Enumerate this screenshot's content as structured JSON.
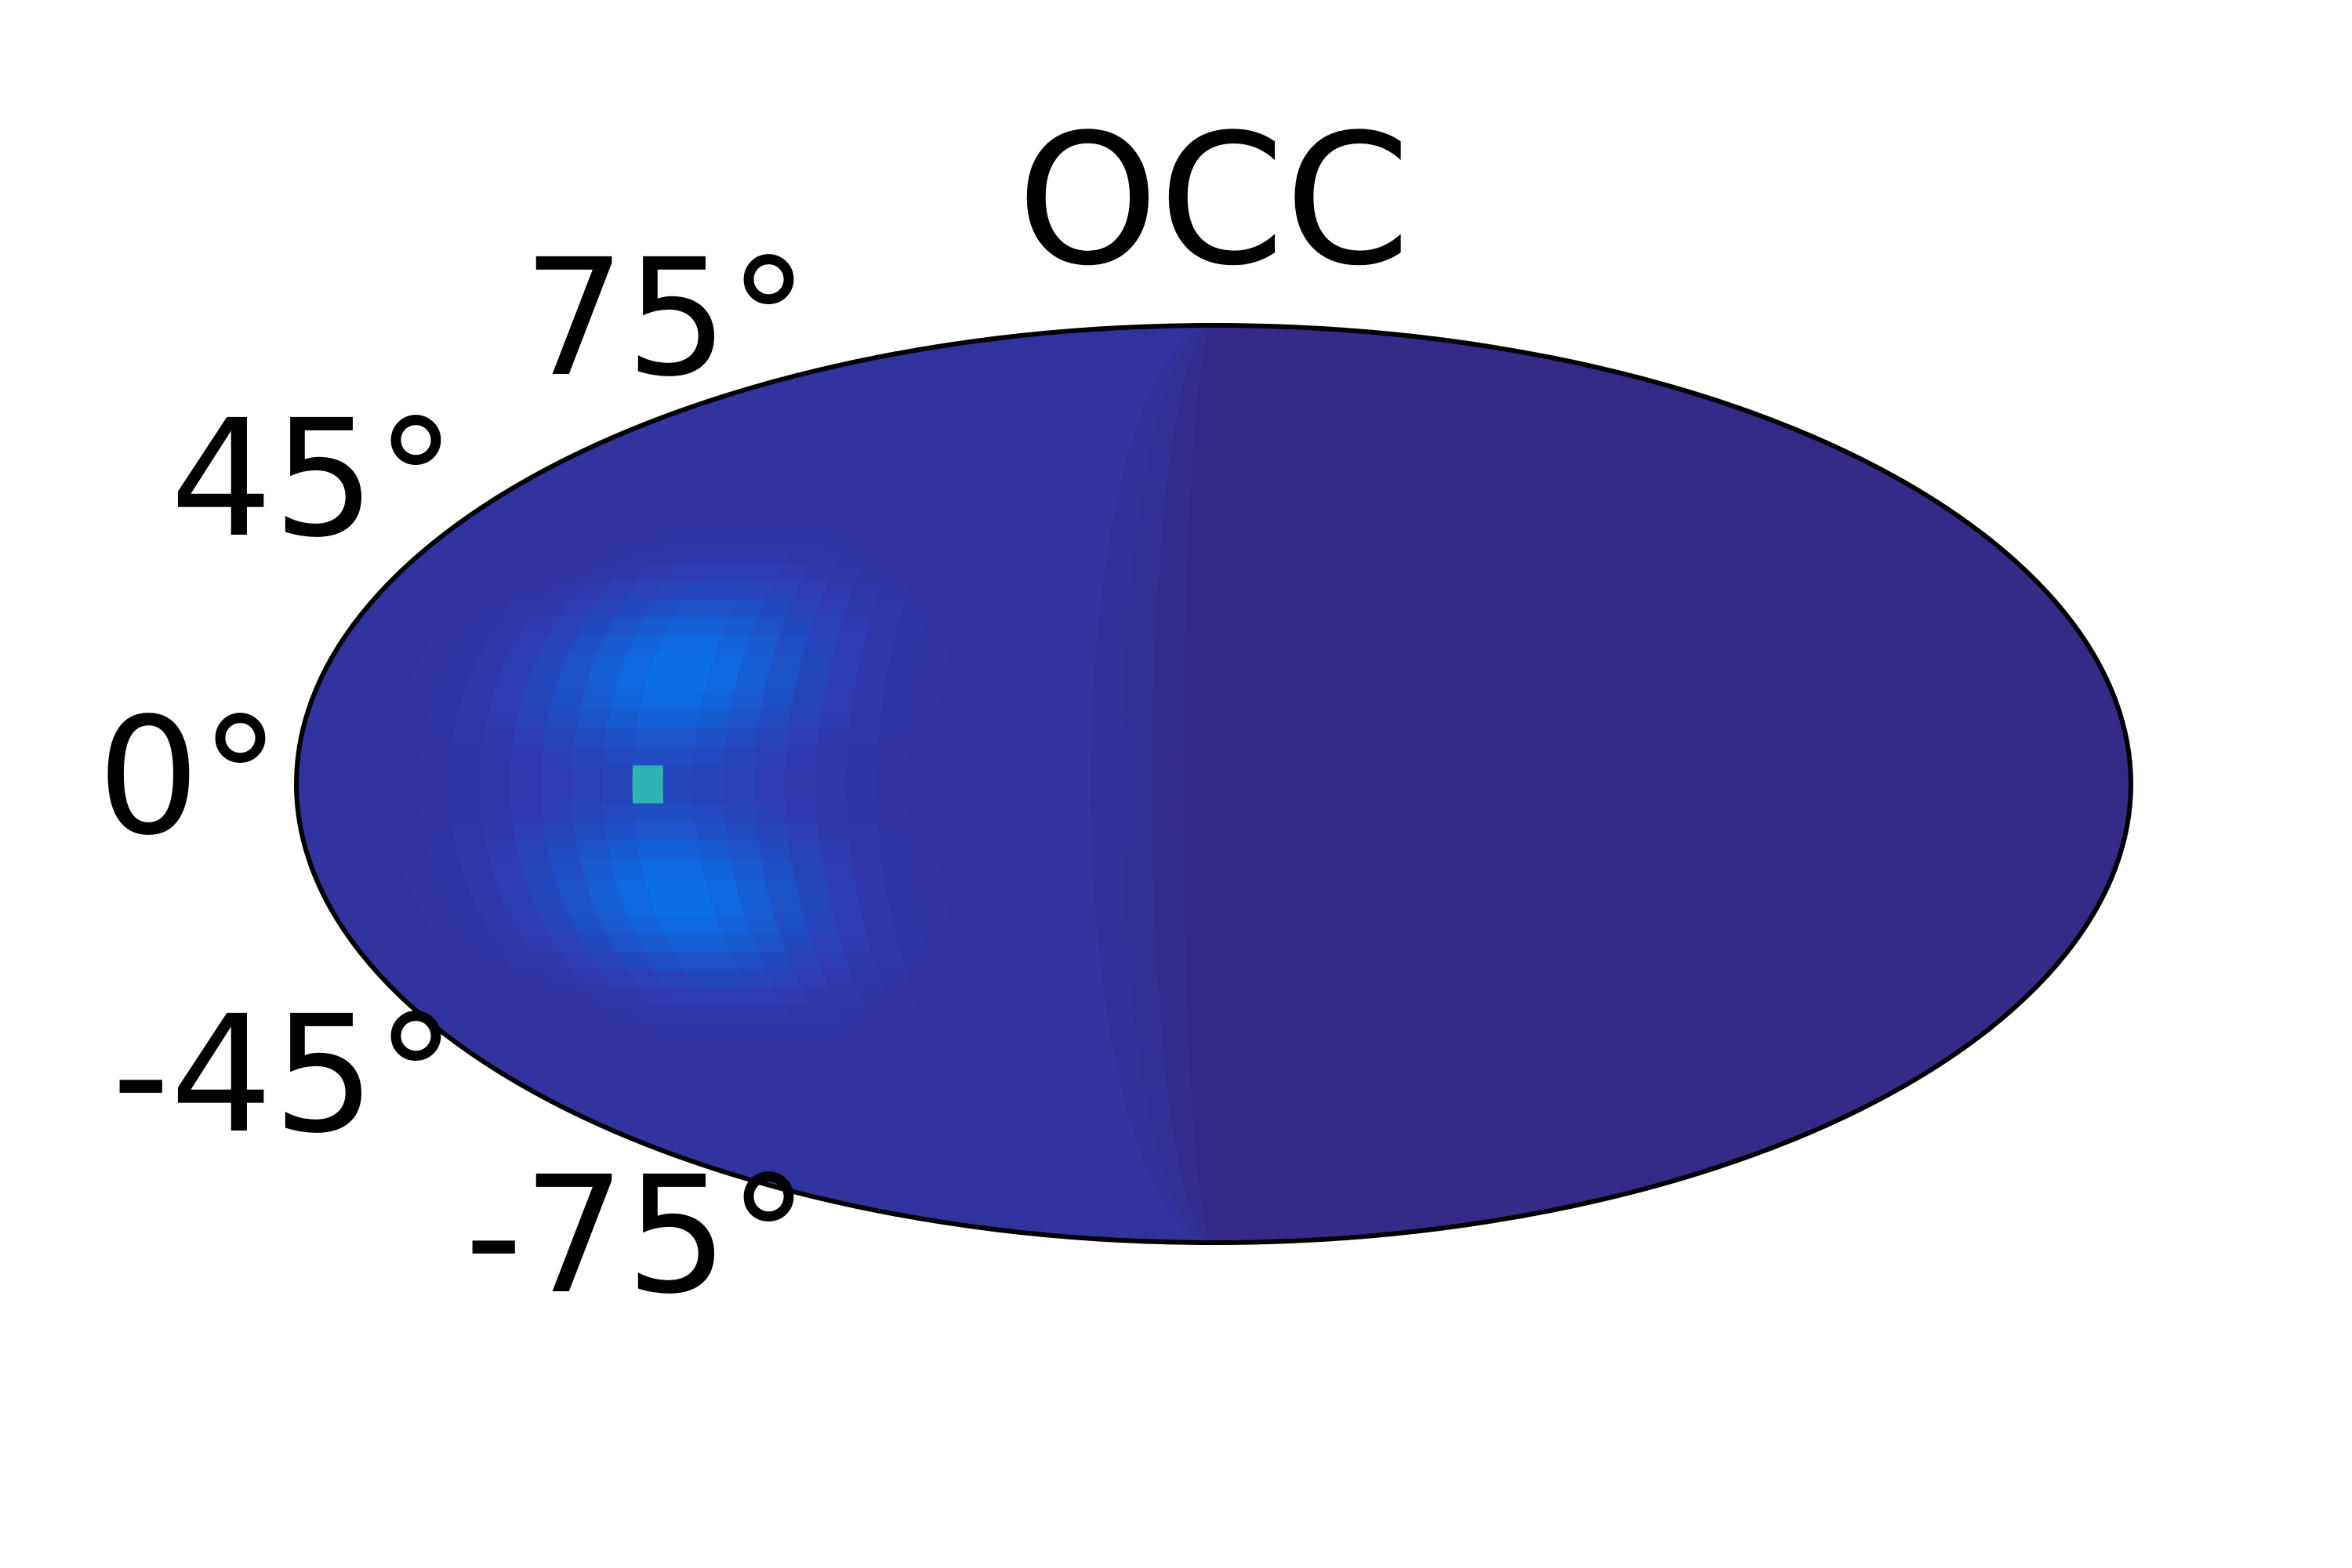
{
  "chart_data": {
    "type": "heatmap",
    "projection": "mollweide",
    "title": "OCC",
    "xlabel": "",
    "ylabel": "",
    "y_ticks": [
      {
        "value": 75,
        "label": "75°"
      },
      {
        "value": 45,
        "label": "45°"
      },
      {
        "value": 0,
        "label": "0°"
      },
      {
        "value": -45,
        "label": "-45°"
      },
      {
        "value": -75,
        "label": "-75°"
      }
    ],
    "x_ticks": [],
    "longitude_range": [
      -180,
      180
    ],
    "latitude_range": [
      -90,
      90
    ],
    "grid": false,
    "colormap": "parula",
    "colors": {
      "background": "#352a87",
      "low": "#2e3ab0",
      "mid": "#0a6ee6",
      "high": "#12a8c8",
      "peak": "#f9fb0e",
      "outline": "#000000"
    },
    "hotspots": [
      {
        "lon": -108,
        "lat": 18,
        "intensity": 0.45,
        "lon_spread": 28,
        "lat_spread": 14
      },
      {
        "lon": -108,
        "lat": -18,
        "intensity": 0.45,
        "lon_spread": 28,
        "lat_spread": 14
      },
      {
        "lon": -110,
        "lat": 2,
        "intensity": 1.0,
        "lon_spread": 1.5,
        "lat_spread": 1.2
      },
      {
        "lon": -110,
        "lat": -2,
        "intensity": 1.0,
        "lon_spread": 1.5,
        "lat_spread": 1.2
      }
    ],
    "empty_region_lon": [
      0,
      180
    ]
  }
}
